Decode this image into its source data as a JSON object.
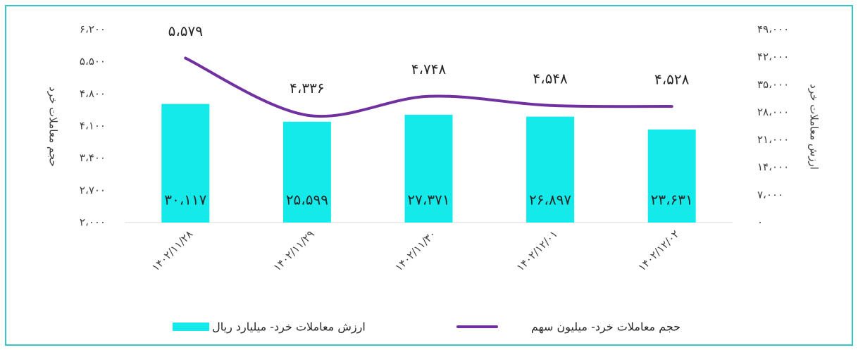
{
  "chart_data": {
    "type": "bar-line",
    "categories": [
      "۱۴۰۲/۱۱/۲۸",
      "۱۴۰۲/۱۱/۲۹",
      "۱۴۰۲/۱۱/۳۰",
      "۱۴۰۲/۱۲/۰۱",
      "۱۴۰۲/۱۲/۰۲"
    ],
    "series": [
      {
        "name": "ارزش معاملات خرد- میلیارد ریال",
        "type": "bar",
        "axis": "y2",
        "color": "#14eaea",
        "values": [
          30117,
          25599,
          27371,
          26897,
          23631
        ],
        "value_labels": [
          "۳۰،۱۱۷",
          "۲۵،۵۹۹",
          "۲۷،۳۷۱",
          "۲۶،۸۹۷",
          "۲۳،۶۳۱"
        ]
      },
      {
        "name": "حجم معاملات خرد- میلیون سهم",
        "type": "line",
        "axis": "y",
        "color": "#7030a0",
        "values": [
          5579,
          4336,
          4748,
          4548,
          4528
        ],
        "value_labels": [
          "۵،۵۷۹",
          "۴،۳۳۶",
          "۴،۷۴۸",
          "۴،۵۴۸",
          "۴،۵۲۸"
        ]
      }
    ],
    "ylabel": "حجم معاملات خرد",
    "y2label": "ارزش معاملات خرد",
    "ylim": [
      2000,
      6200
    ],
    "yticks": [
      {
        "value": 2000,
        "label": "۲،۰۰۰"
      },
      {
        "value": 2700,
        "label": "۲،۷۰۰"
      },
      {
        "value": 3400,
        "label": "۳،۴۰۰"
      },
      {
        "value": 4100,
        "label": "۴،۱۰۰"
      },
      {
        "value": 4800,
        "label": "۴،۸۰۰"
      },
      {
        "value": 5500,
        "label": "۵،۵۰۰"
      },
      {
        "value": 6200,
        "label": "۶،۲۰۰"
      }
    ],
    "y2lim": [
      0,
      49000
    ],
    "y2ticks": [
      {
        "value": 0,
        "label": "۰"
      },
      {
        "value": 7000,
        "label": "۷،۰۰۰"
      },
      {
        "value": 14000,
        "label": "۱۴،۰۰۰"
      },
      {
        "value": 21000,
        "label": "۲۱،۰۰۰"
      },
      {
        "value": 28000,
        "label": "۲۸،۰۰۰"
      },
      {
        "value": 35000,
        "label": "۳۵،۰۰۰"
      },
      {
        "value": 42000,
        "label": "۴۲،۰۰۰"
      },
      {
        "value": 49000,
        "label": "۴۹،۰۰۰"
      }
    ],
    "legend": "bottom",
    "grid": false
  }
}
